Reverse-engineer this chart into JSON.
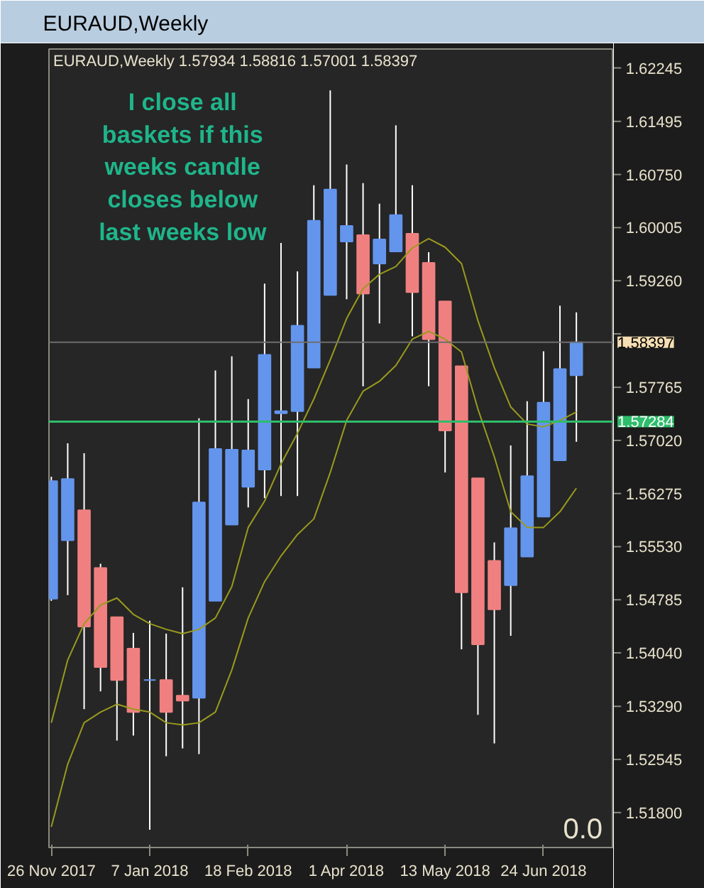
{
  "chart_data": {
    "type": "candlestick",
    "title": "EURAUD,Weekly",
    "subtitle": "EURAUD,Weekly  1.57934 1.58816 1.57001 1.58397",
    "annotations": [
      "I close all baskets if this weeks candle closes below last weeks low",
      "0.0"
    ],
    "x": [
      "2017-11-26",
      "2017-12-03",
      "2017-12-10",
      "2017-12-17",
      "2017-12-24",
      "2017-12-31",
      "2018-01-07",
      "2018-01-14",
      "2018-01-21",
      "2018-01-28",
      "2018-02-04",
      "2018-02-11",
      "2018-02-18",
      "2018-02-25",
      "2018-03-04",
      "2018-03-11",
      "2018-03-18",
      "2018-03-25",
      "2018-04-01",
      "2018-04-08",
      "2018-04-15",
      "2018-04-22",
      "2018-04-29",
      "2018-05-06",
      "2018-05-13",
      "2018-05-20",
      "2018-05-27",
      "2018-06-03",
      "2018-06-10",
      "2018-06-17",
      "2018-06-24",
      "2018-07-01",
      "2018-07-08"
    ],
    "ohlc": [
      [
        1.548,
        1.5651,
        1.5477,
        1.5645
      ],
      [
        1.5562,
        1.5698,
        1.5485,
        1.5648
      ],
      [
        1.5604,
        1.5684,
        1.5325,
        1.5441
      ],
      [
        1.5523,
        1.5529,
        1.535,
        1.5384
      ],
      [
        1.5454,
        1.5454,
        1.5281,
        1.5366
      ],
      [
        1.541,
        1.5432,
        1.5288,
        1.5321
      ],
      [
        1.5366,
        1.5449,
        1.5156,
        1.5366
      ],
      [
        1.5366,
        1.5431,
        1.5259,
        1.5321
      ],
      [
        1.5344,
        1.5496,
        1.527,
        1.5337
      ],
      [
        1.5341,
        1.5733,
        1.5262,
        1.5615
      ],
      [
        1.5477,
        1.58,
        1.5477,
        1.569
      ],
      [
        1.5584,
        1.582,
        1.5584,
        1.5689
      ],
      [
        1.5637,
        1.576,
        1.5608,
        1.5688
      ],
      [
        1.5661,
        1.5922,
        1.5621,
        1.5822
      ],
      [
        1.574,
        1.5979,
        1.5624,
        1.5743
      ],
      [
        1.5743,
        1.5939,
        1.5624,
        1.5863
      ],
      [
        1.5804,
        1.606,
        1.5804,
        1.601
      ],
      [
        1.5906,
        1.6193,
        1.5906,
        1.6054
      ],
      [
        1.5981,
        1.6089,
        1.59,
        1.6003
      ],
      [
        1.599,
        1.6063,
        1.5778,
        1.5908
      ],
      [
        1.595,
        1.6034,
        1.5866,
        1.5984
      ],
      [
        1.5967,
        1.6144,
        1.5967,
        1.6018
      ],
      [
        1.5992,
        1.606,
        1.5848,
        1.591
      ],
      [
        1.5951,
        1.5966,
        1.5778,
        1.5844
      ],
      [
        1.5897,
        1.5897,
        1.5657,
        1.5716
      ],
      [
        1.5806,
        1.5806,
        1.5409,
        1.5489
      ],
      [
        1.5649,
        1.5649,
        1.5317,
        1.5416
      ],
      [
        1.5533,
        1.5559,
        1.5277,
        1.5465
      ],
      [
        1.5499,
        1.5695,
        1.5428,
        1.5579
      ],
      [
        1.5539,
        1.5757,
        1.5539,
        1.5652
      ],
      [
        1.5595,
        1.5827,
        1.5595,
        1.5755
      ],
      [
        1.5674,
        1.5891,
        1.5674,
        1.5802
      ],
      [
        1.57934,
        1.58816,
        1.57001,
        1.58397
      ]
    ],
    "colors": [
      "#6495ed",
      "#6495ed",
      "#f08080",
      "#f08080",
      "#f08080",
      "#f08080",
      "#6495ed",
      "#f08080",
      "#f08080",
      "#6495ed",
      "#6495ed",
      "#6495ed",
      "#6495ed",
      "#6495ed",
      "#6495ed",
      "#6495ed",
      "#6495ed",
      "#6495ed",
      "#6495ed",
      "#f08080",
      "#6495ed",
      "#6495ed",
      "#f08080",
      "#f08080",
      "#f08080",
      "#f08080",
      "#f08080",
      "#f08080",
      "#6495ed",
      "#6495ed",
      "#6495ed",
      "#6495ed",
      "#6495ed"
    ],
    "series": [
      {
        "type": "line",
        "color": "#9a9a1e",
        "values": [
          1.5306,
          1.5394,
          1.5445,
          1.5471,
          1.5481,
          1.5458,
          1.5445,
          1.5437,
          1.5431,
          1.5437,
          1.5453,
          1.5497,
          1.558,
          1.5617,
          1.5669,
          1.5712,
          1.576,
          1.5815,
          1.5873,
          1.5915,
          1.5935,
          1.5946,
          1.5972,
          1.5985,
          1.5973,
          1.595,
          1.587,
          1.5804,
          1.5749,
          1.5725,
          1.5721,
          1.573,
          1.5742
        ]
      },
      {
        "type": "line",
        "color": "#9a9a1e",
        "values": [
          1.516,
          1.5248,
          1.5306,
          1.5321,
          1.5332,
          1.5325,
          1.5321,
          1.5306,
          1.5303,
          1.5306,
          1.5321,
          1.538,
          1.5453,
          1.5504,
          1.554,
          1.557,
          1.5592,
          1.5657,
          1.573,
          1.5771,
          1.5785,
          1.5807,
          1.5844,
          1.5855,
          1.5844,
          1.5826,
          1.5746,
          1.5679,
          1.5602,
          1.558,
          1.558,
          1.5602,
          1.5635
        ]
      }
    ],
    "xlim": [
      "2017-11-25",
      "2018-07-24"
    ],
    "xticks": [
      {
        "value": "2017-11-26",
        "label": "26 Nov 2017"
      },
      {
        "value": "2018-01-07",
        "label": "7 Jan 2018"
      },
      {
        "value": "2018-02-18",
        "label": "18 Feb 2018"
      },
      {
        "value": "2018-04-01",
        "label": "1 Apr 2018"
      },
      {
        "value": "2018-05-13",
        "label": "13 May 2018"
      },
      {
        "value": "2018-06-24",
        "label": "24 Jun 2018"
      }
    ],
    "ylim": [
      1.5131,
      1.6251
    ],
    "yticks": [
      {
        "value": 1.518,
        "label": "1.51800"
      },
      1.52545,
      {
        "value": 1.5329,
        "label": "1.53290"
      },
      {
        "value": 1.5404,
        "label": "1.54040"
      },
      1.54785,
      {
        "value": 1.5553,
        "label": "1.55530"
      },
      1.56275,
      {
        "value": 1.5702,
        "label": "1.57020"
      },
      1.57765,
      {
        "value": 1.58515,
        "label": null
      },
      {
        "value": 1.5926,
        "label": "1.59260"
      },
      1.60005,
      {
        "value": 1.6075,
        "label": "1.60750"
      },
      1.61495,
      1.62245
    ],
    "ref_lines": [
      {
        "axis": "y",
        "value": 1.57284,
        "label": "1.57284",
        "color": "#2ebd6b",
        "line_style": "solid"
      },
      {
        "axis": "y",
        "value": 1.58397,
        "label": "1.58397",
        "color": "#6e6e6e",
        "line_style": "solid"
      }
    ],
    "grid": false
  }
}
